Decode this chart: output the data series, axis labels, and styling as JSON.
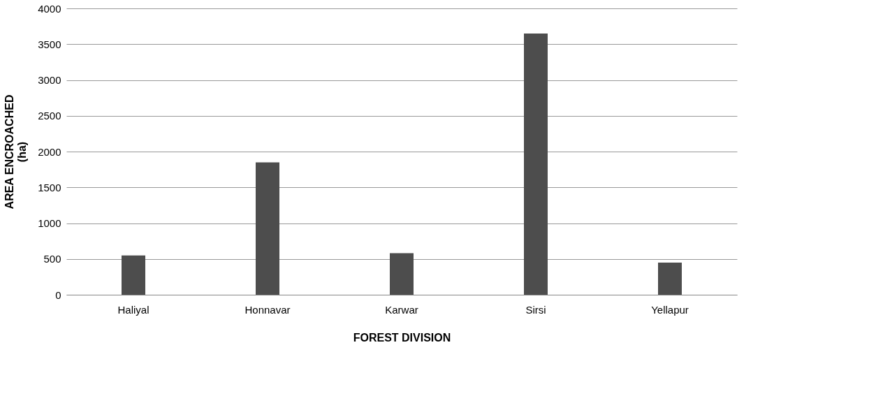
{
  "chart_data": {
    "type": "bar",
    "xlabel": "FOREST  DIVISION",
    "ylabel": "AREA ENCROACHED (ha)",
    "categories": [
      "Haliyal",
      "Honnavar",
      "Karwar",
      "Sirsi",
      "Yellapur"
    ],
    "values": [
      550,
      1850,
      580,
      3650,
      450
    ],
    "color": "#4d4d4d",
    "ylim": [
      0,
      4000
    ],
    "yticks": [
      0,
      500,
      1000,
      1500,
      2000,
      2500,
      3000,
      3500,
      4000
    ],
    "grid": "y"
  }
}
